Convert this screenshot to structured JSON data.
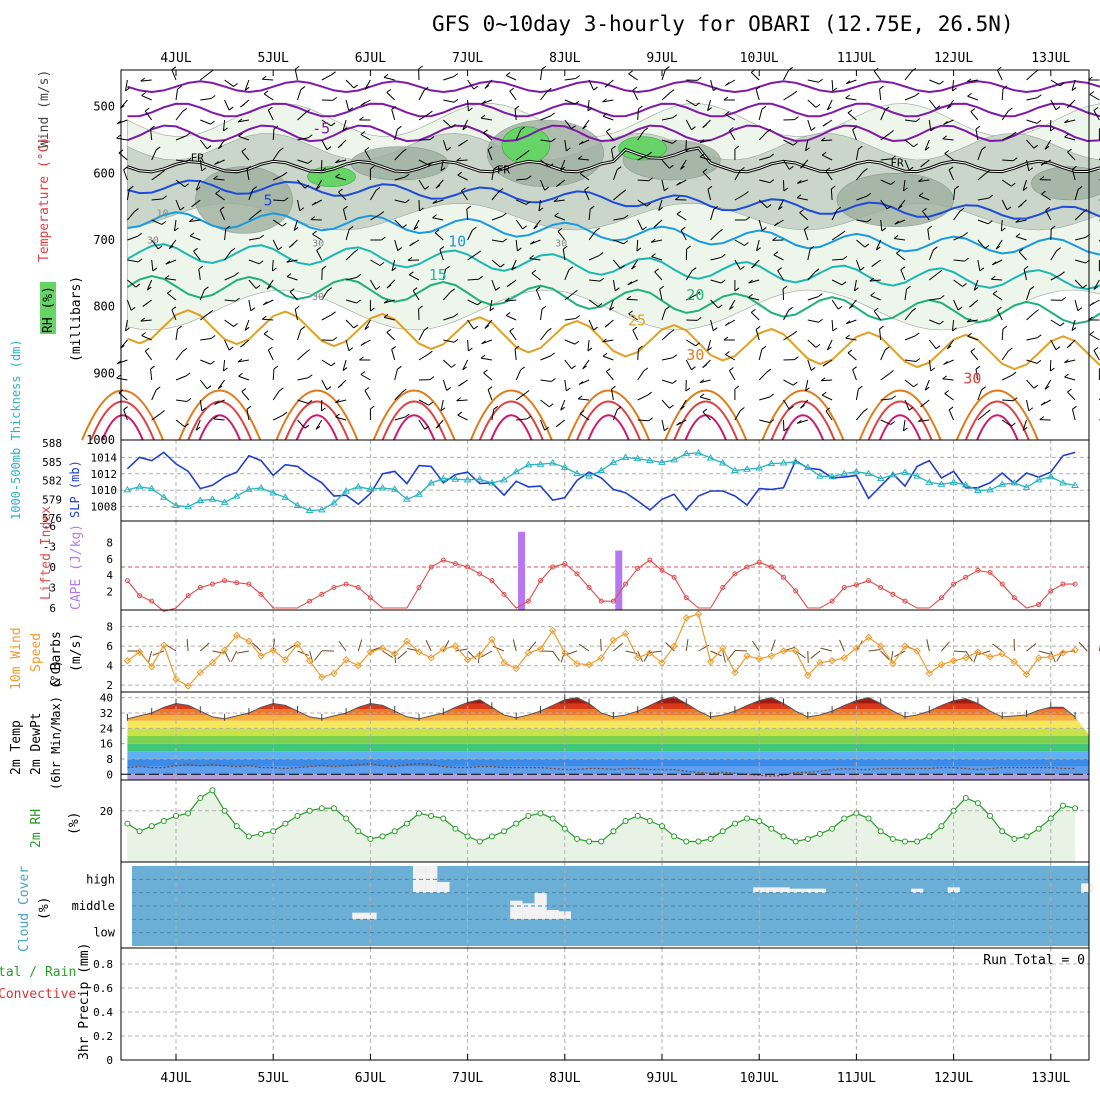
{
  "title": "GFS 0~10day 3-hourly for OBARI (12.75E, 26.5N)",
  "colors": {
    "temp_isotherms": [
      "#7d1aa8",
      "#1f4bd6",
      "#1a9ae0",
      "#1cb8b0",
      "#20b07a",
      "#e0a020",
      "#e27a18",
      "#e04040",
      "#d01868"
    ],
    "slp": "#1f3fd0",
    "thickness": "#28b4c0",
    "lifted_index": "#e04a4a",
    "cape": "#b777f2",
    "wind_speed": "#f09a2a",
    "wind_barbs": "#6b4a2a",
    "rh": "#2a9a2a",
    "rh_fill": "#e8f3e6",
    "cloud": "#6baed6",
    "grid": "#b0b0b0"
  },
  "chart_data": [
    {
      "type": "contour",
      "panel": "upper-air",
      "x_ticks": [
        "4JUL",
        "5JUL",
        "6JUL",
        "7JUL",
        "8JUL",
        "9JUL",
        "10JUL",
        "11JUL",
        "12JUL",
        "13JUL"
      ],
      "ylabel": "Wind (m/s)  Temperature (°C)  RH (%)  (millibars)",
      "ylabel_parts": [
        "Wind (m/s)",
        "Temperature (°C)",
        "RH (%)",
        "(millibars)"
      ],
      "y_ticks": [
        500,
        600,
        700,
        800,
        900,
        1000
      ],
      "ylim": [
        1000,
        445
      ],
      "isotherm_labels": [
        "-5",
        "5",
        "10",
        "15",
        "20",
        "25",
        "30",
        "30"
      ],
      "freezing_label": "FR",
      "rh_labels": [
        "10",
        "30",
        "30",
        "30",
        "30"
      ]
    },
    {
      "type": "line",
      "panel": "slp-thickness",
      "ylabel_left": "1000-500mb Thickness (dm)",
      "ylabel_right": "SLP (mb)",
      "y_ticks_left": [
        588,
        585,
        582,
        579,
        576
      ],
      "y_ticks_right": [
        1014,
        1012,
        1010,
        1008
      ],
      "series": [
        {
          "name": "SLP",
          "values": [
            1012.6,
            1014,
            1013.6,
            1014.6,
            1013.2,
            1012.3,
            1010.2,
            1010.6,
            1011.6,
            1012.2,
            1014.2,
            1013.6,
            1011.8,
            1013.1,
            1012.9,
            1011.8,
            1010.9,
            1009.3,
            1009.4,
            1008.3,
            1009.6,
            1012,
            1012.3,
            1010.8,
            1013,
            1012.9,
            1010.9,
            1011.9,
            1012.2,
            1010.8,
            1010.9,
            1009.4,
            1011.1,
            1010.4,
            1010.5,
            1008.8,
            1009.1,
            1011.2,
            1012.2,
            1011.5,
            1010.1,
            1009.7,
            1008.7,
            1007.6,
            1008.9,
            1009.5,
            1007.6,
            1009.3,
            1009.9,
            1009.9,
            1009.3,
            1008.2,
            1010.2,
            1010.1,
            1010.3,
            1013.6,
            1012.7,
            1012.5,
            1011.5,
            1011.6,
            1011.8,
            1009,
            1010.5,
            1012,
            1010.5,
            1012.9,
            1013.6,
            1011.5,
            1012.3,
            1010.3,
            1010.3,
            1010.9,
            1012.1,
            1010.8,
            1012.1,
            1011.6,
            1012.2,
            1014.2,
            1014.6
          ]
        },
        {
          "name": "Thickness",
          "values": [
            580.5,
            581,
            580.7,
            579.3,
            578,
            577.8,
            578.8,
            579,
            578.5,
            579.5,
            580.6,
            580.8,
            580,
            579.3,
            578,
            577.2,
            577.3,
            578.4,
            580.3,
            581,
            580.6,
            580.8,
            580.6,
            579,
            579.8,
            581.6,
            582.3,
            582.2,
            582.1,
            582.2,
            581.6,
            582.1,
            583.4,
            584.5,
            584.6,
            584.8,
            584.1,
            583.1,
            582.7,
            583.6,
            584.9,
            585.7,
            585.5,
            585.2,
            584.9,
            585.3,
            586.3,
            586.4,
            585.6,
            584.8,
            583.6,
            583.8,
            584,
            584.7,
            584.8,
            585,
            584.1,
            582.7,
            582.6,
            583.1,
            583.4,
            583.1,
            582.3,
            582.9,
            583.3,
            582.7,
            581.7,
            581.4,
            581.7,
            581.3,
            580.4,
            580.5,
            581.4,
            581.6,
            580.9,
            582.1,
            582.6,
            581.6,
            581.2
          ]
        }
      ]
    },
    {
      "type": "bar",
      "panel": "lifted-index-cape",
      "ylabel_left": "Lifted Index",
      "ylabel_right": "CAPE (J/kg)",
      "y_ticks_left": [
        "-6",
        "-3",
        "0",
        "3",
        "6"
      ],
      "y_ticks_right": [
        "8",
        "6",
        "4",
        "2"
      ],
      "lifted_index": [
        2,
        4.2,
        5,
        6.5,
        6,
        4.2,
        3,
        2.5,
        2,
        2.3,
        2.5,
        4,
        6,
        6,
        6,
        5,
        4,
        3,
        2.5,
        3,
        4.5,
        6,
        6,
        6,
        3,
        0,
        -1,
        -0.5,
        0,
        1,
        2,
        4,
        6,
        5,
        2,
        0,
        -0.5,
        1,
        3,
        5,
        5,
        2.5,
        0.2,
        -1,
        0.5,
        1.5,
        4.5,
        6,
        6,
        3,
        1,
        0,
        -0.7,
        0,
        1.5,
        3.5,
        6,
        6,
        5,
        3,
        2.6,
        2,
        3,
        4,
        5,
        6,
        6,
        4.5,
        2.5,
        1.5,
        0.5,
        0.8,
        2.5,
        4.5,
        6,
        5.5,
        3.5,
        2.5,
        2.5
      ],
      "cape": [
        {
          "x": 4.1,
          "value": 9.3
        },
        {
          "x": 5.1,
          "value": 7.0
        }
      ]
    },
    {
      "type": "line",
      "panel": "wind-10m",
      "ylabel": "10m Wind Speed & Barbs (m/s)",
      "ylabel_parts": [
        "10m Wind",
        "Speed",
        "& Barbs",
        "(m/s)"
      ],
      "y_ticks": [
        8,
        6,
        4,
        2
      ],
      "series": [
        {
          "name": "Speed",
          "values": [
            4.5,
            5.4,
            3.9,
            6.1,
            2.6,
            1.9,
            3.3,
            4.3,
            5.6,
            7.1,
            6.5,
            5,
            5.6,
            4.6,
            6.2,
            4.5,
            2.8,
            3.2,
            4.6,
            4,
            5.4,
            5.8,
            5.2,
            6.5,
            5.4,
            4.8,
            5.7,
            6,
            4.6,
            5.1,
            6.7,
            4.3,
            3.7,
            5.3,
            5.7,
            7.6,
            5.3,
            4.2,
            4.1,
            4.8,
            6.6,
            7.3,
            4.8,
            5.3,
            4.3,
            6,
            8.9,
            9.3,
            4.4,
            5.8,
            3.3,
            5,
            4.7,
            5,
            5.5,
            5.5,
            3,
            4.3,
            4.5,
            4.8,
            5.8,
            6.9,
            6,
            4.2,
            6,
            5.5,
            3.2,
            4.1,
            4.5,
            4.8,
            5.4,
            4.9,
            5.2,
            4.4,
            3.1,
            4.8,
            4.9,
            5.3,
            5.6
          ]
        }
      ]
    },
    {
      "type": "area",
      "panel": "temp-2m",
      "ylabel": "2m Temp 2m DewPt (6hr Min/Max) (°C)",
      "ylabel_parts": [
        "2m Temp",
        "2m DewPt",
        "(6hr Min/Max) (°C)"
      ],
      "y_ticks": [
        40,
        32,
        24,
        16,
        8,
        0
      ],
      "series": [
        {
          "name": "2m Temp",
          "values": [
            29,
            30.5,
            32,
            35,
            37,
            36,
            33,
            30,
            29,
            30.5,
            32,
            35,
            37,
            36,
            33,
            30,
            29,
            30.5,
            32,
            35,
            37,
            36,
            33,
            30,
            29,
            30.5,
            32,
            35,
            37.5,
            39,
            35,
            31,
            29.5,
            31,
            33,
            36,
            39,
            40,
            37,
            32,
            30,
            31,
            33,
            36,
            39,
            40.5,
            37,
            33,
            30,
            31,
            33,
            36,
            38.5,
            40,
            37,
            33,
            30,
            31,
            33,
            36,
            38.5,
            40,
            37,
            33,
            30,
            31,
            33,
            36,
            38.5,
            39.5,
            37,
            33,
            30,
            30.5,
            31,
            33.5,
            35,
            35,
            30
          ]
        },
        {
          "name": "2m DewPt",
          "values": [
            3.5,
            4,
            3.5,
            3.5,
            4.5,
            5,
            4.5,
            5,
            4.5,
            4,
            4.5,
            3.5,
            3.5,
            3,
            3.5,
            4,
            4.5,
            4,
            4.5,
            5,
            5.5,
            4.5,
            4,
            5,
            5.5,
            5,
            4,
            3.5,
            3.5,
            4,
            4,
            3.5,
            3.5,
            3.5,
            3.5,
            3,
            2.5,
            2.5,
            3,
            3,
            2.5,
            3,
            3,
            2.5,
            2.5,
            2.5,
            1.5,
            1,
            0.5,
            1,
            0.5,
            0,
            -0.5,
            -1,
            -0.5,
            1,
            1,
            1.5,
            2.5,
            3,
            2.5,
            2.5,
            3,
            3,
            3,
            3,
            3,
            3.5,
            3.5,
            3,
            2.5,
            3,
            3.5,
            3.5,
            3.5,
            3.5,
            3.5,
            3,
            3
          ]
        }
      ]
    },
    {
      "type": "area",
      "panel": "rh-2m",
      "ylabel": "2m RH (%)",
      "y_ticks": [
        20
      ],
      "series": [
        {
          "name": "2m RH",
          "values": [
            15,
            12,
            14,
            16,
            18,
            19,
            25,
            28,
            20,
            14,
            10,
            11,
            12,
            15,
            18,
            20,
            21,
            21,
            17,
            12,
            9,
            10,
            12,
            15,
            19,
            18,
            17,
            13,
            10,
            8,
            10,
            12,
            15,
            18,
            19,
            17,
            13,
            9,
            8,
            8,
            12,
            16,
            18,
            16,
            14,
            10,
            8,
            8,
            9,
            12,
            15,
            17,
            16,
            13,
            10,
            8,
            9,
            11,
            13,
            17,
            19,
            17,
            12,
            9,
            8,
            8,
            10,
            14,
            20,
            25,
            23,
            18,
            12,
            9,
            10,
            13,
            17,
            22,
            21
          ]
        }
      ]
    },
    {
      "type": "bar",
      "panel": "cloud-cover",
      "ylabel": "Cloud Cover (%)",
      "ylabel_parts": [
        "Cloud Cover",
        "(%)"
      ],
      "y_ticks": [
        "high",
        "middle",
        "low"
      ],
      "high_cloud": [
        0,
        0,
        0,
        0,
        0,
        0,
        0,
        0,
        0,
        0,
        0,
        0,
        0,
        0,
        0,
        0,
        0,
        0,
        0,
        0,
        0,
        0,
        0,
        0,
        100,
        100,
        40,
        0,
        0,
        0,
        0,
        0,
        0,
        0,
        0,
        0,
        0,
        0,
        0,
        0,
        0,
        0,
        0,
        0,
        0,
        0,
        0,
        0,
        0,
        0,
        0,
        0,
        20,
        20,
        20,
        15,
        15,
        15,
        0,
        0,
        0,
        0,
        0,
        0,
        0,
        15,
        0,
        0,
        20,
        0,
        0,
        0,
        0,
        0,
        0,
        0,
        0,
        0,
        0,
        35,
        0,
        0,
        0
      ],
      "middle_cloud": [
        0,
        0,
        0,
        0,
        0,
        0,
        0,
        0,
        0,
        0,
        0,
        0,
        0,
        0,
        0,
        0,
        0,
        0,
        0,
        25,
        25,
        0,
        0,
        0,
        0,
        0,
        0,
        0,
        0,
        0,
        0,
        0,
        70,
        60,
        100,
        35,
        30,
        0,
        0,
        0,
        0,
        0,
        0,
        0,
        0,
        0,
        0,
        0,
        0,
        0,
        0,
        0,
        0,
        0,
        0,
        0,
        0,
        0,
        0,
        0,
        0,
        0,
        0,
        0,
        0,
        0,
        0,
        0,
        0,
        0,
        0,
        0,
        0,
        0,
        0,
        0,
        0,
        0,
        0,
        0,
        0,
        0,
        0
      ],
      "low_cloud": [
        0,
        0,
        0,
        0,
        0,
        0,
        0,
        0,
        0,
        0,
        0,
        0,
        0,
        0,
        0,
        0,
        0,
        0,
        0,
        0,
        0,
        0,
        0,
        0,
        0,
        0,
        0,
        0,
        0,
        0,
        0,
        0,
        0,
        0,
        0,
        0,
        0,
        0,
        0,
        0,
        0,
        0,
        0,
        0,
        0,
        0,
        0,
        0,
        0,
        0,
        0,
        0,
        0,
        0,
        0,
        0,
        0,
        0,
        0,
        0,
        0,
        0,
        0,
        0,
        0,
        0,
        0,
        0,
        0,
        0,
        0,
        0,
        0,
        0,
        0,
        0,
        0,
        0,
        0,
        0,
        0,
        0,
        0
      ]
    },
    {
      "type": "bar",
      "panel": "precip",
      "ylabel": "Total / Rain Convective 3hr Precip (mm)",
      "ylabel_parts": [
        "tal / Rain",
        "Convective",
        "3hr Precip (mm)"
      ],
      "y_ticks": [
        "0.8",
        "0.6",
        "0.4",
        "0.2",
        "0"
      ],
      "ylim": [
        0,
        0.9
      ],
      "annotation": "Run Total = 0",
      "values": []
    }
  ]
}
